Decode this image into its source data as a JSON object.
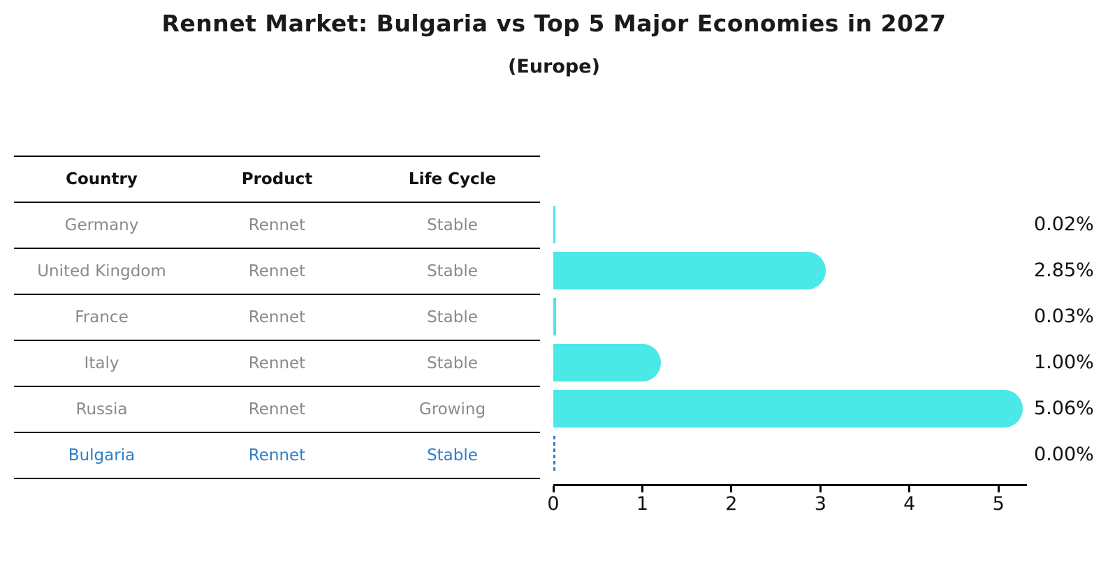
{
  "title": "Rennet Market: Bulgaria vs Top 5 Major Economies in 2027",
  "subtitle": "(Europe)",
  "table": {
    "headers": [
      "Country",
      "Product",
      "Life Cycle"
    ],
    "rows": [
      {
        "country": "Germany",
        "product": "Rennet",
        "life_cycle": "Stable"
      },
      {
        "country": "United Kingdom",
        "product": "Rennet",
        "life_cycle": "Stable"
      },
      {
        "country": "France",
        "product": "Rennet",
        "life_cycle": "Stable"
      },
      {
        "country": "Italy",
        "product": "Rennet",
        "life_cycle": "Stable"
      },
      {
        "country": "Russia",
        "product": "Rennet",
        "life_cycle": "Growing"
      },
      {
        "country": "Bulgaria",
        "product": "Rennet",
        "life_cycle": "Stable"
      }
    ],
    "highlighted_country": "Bulgaria"
  },
  "chart_data": {
    "type": "bar",
    "orientation": "horizontal",
    "categories": [
      "Germany",
      "United Kingdom",
      "France",
      "Italy",
      "Russia",
      "Bulgaria"
    ],
    "values": [
      0.02,
      2.85,
      0.03,
      1.0,
      5.06,
      0.0
    ],
    "value_labels": [
      "0.02%",
      "2.85%",
      "0.03%",
      "1.00%",
      "5.06%",
      "0.00%"
    ],
    "x_ticks": [
      "0",
      "1",
      "2",
      "3",
      "4",
      "5"
    ],
    "xlim": [
      0,
      5.32
    ],
    "grid": false,
    "legend": "none",
    "bar_color": "#4BE8E8",
    "highlight_index": 5,
    "highlight_style": "dashed-zero-line",
    "highlight_color": "#2E7EC8"
  },
  "colors": {
    "background": "#FFFFFF",
    "title_text": "#1A1A1A",
    "table_header_text": "#111111",
    "table_row_text": "#8A8A8A",
    "highlight_text": "#2E7EC8",
    "bar_fill": "#4BE8E8",
    "axis": "#000000"
  }
}
